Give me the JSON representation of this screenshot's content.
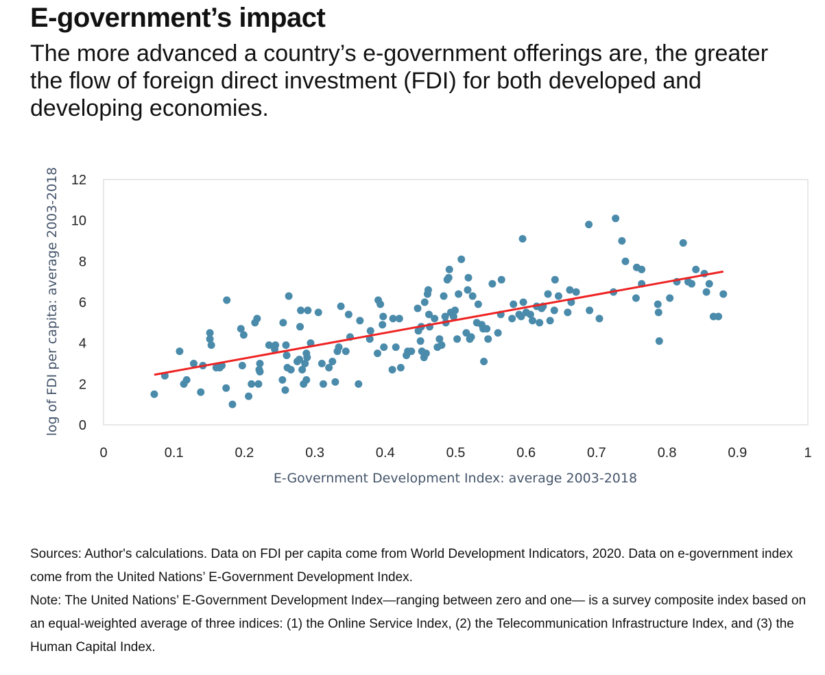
{
  "header": {
    "title": "E-government’s impact",
    "subtitle": "The more advanced a country’s e-government offerings are, the greater the flow of foreign direct investment (FDI) for both developed and developing economies."
  },
  "chart_data": {
    "type": "scatter",
    "xlabel": "E-Government Development Index: average 2003-2018",
    "ylabel": "log of FDI per capita: average 2003-2018",
    "xlim": [
      0,
      1
    ],
    "ylim": [
      0,
      12
    ],
    "x_ticks": [
      "0",
      "0.1",
      "0.2",
      "0.3",
      "0.4",
      "0.5",
      "0.6",
      "0.7",
      "0.8",
      "0.9",
      "1"
    ],
    "y_ticks": [
      "0",
      "2",
      "4",
      "6",
      "8",
      "10",
      "12"
    ],
    "grid": false,
    "point_color": "#4a8aaa",
    "trendline_color": "#ee2222",
    "trendline": {
      "x": [
        0.072,
        0.88
      ],
      "y": [
        2.45,
        7.5
      ]
    },
    "points": [
      [
        0.072,
        1.5
      ],
      [
        0.087,
        2.4
      ],
      [
        0.108,
        3.6
      ],
      [
        0.114,
        2.0
      ],
      [
        0.118,
        2.2
      ],
      [
        0.128,
        3.0
      ],
      [
        0.138,
        1.6
      ],
      [
        0.141,
        2.9
      ],
      [
        0.151,
        4.5
      ],
      [
        0.151,
        4.2
      ],
      [
        0.153,
        3.9
      ],
      [
        0.16,
        2.8
      ],
      [
        0.165,
        2.8
      ],
      [
        0.168,
        2.9
      ],
      [
        0.174,
        1.8
      ],
      [
        0.175,
        6.1
      ],
      [
        0.183,
        1.0
      ],
      [
        0.195,
        4.7
      ],
      [
        0.197,
        2.9
      ],
      [
        0.199,
        4.4
      ],
      [
        0.206,
        1.4
      ],
      [
        0.21,
        2.0
      ],
      [
        0.215,
        5.0
      ],
      [
        0.218,
        5.2
      ],
      [
        0.22,
        2.0
      ],
      [
        0.221,
        2.7
      ],
      [
        0.222,
        2.6
      ],
      [
        0.222,
        3.0
      ],
      [
        0.235,
        3.9
      ],
      [
        0.243,
        3.7
      ],
      [
        0.244,
        3.9
      ],
      [
        0.254,
        2.2
      ],
      [
        0.255,
        5.0
      ],
      [
        0.258,
        1.7
      ],
      [
        0.259,
        3.9
      ],
      [
        0.26,
        3.4
      ],
      [
        0.261,
        2.8
      ],
      [
        0.263,
        6.3
      ],
      [
        0.266,
        2.7
      ],
      [
        0.275,
        3.1
      ],
      [
        0.278,
        3.2
      ],
      [
        0.279,
        4.8
      ],
      [
        0.28,
        5.6
      ],
      [
        0.282,
        2.7
      ],
      [
        0.284,
        2.0
      ],
      [
        0.286,
        3.0
      ],
      [
        0.288,
        3.5
      ],
      [
        0.288,
        2.2
      ],
      [
        0.289,
        3.3
      ],
      [
        0.29,
        5.6
      ],
      [
        0.294,
        4.0
      ],
      [
        0.305,
        5.5
      ],
      [
        0.31,
        3.0
      ],
      [
        0.312,
        2.0
      ],
      [
        0.32,
        2.8
      ],
      [
        0.325,
        3.1
      ],
      [
        0.329,
        2.1
      ],
      [
        0.332,
        3.6
      ],
      [
        0.334,
        3.8
      ],
      [
        0.337,
        5.8
      ],
      [
        0.344,
        3.6
      ],
      [
        0.348,
        5.4
      ],
      [
        0.35,
        4.3
      ],
      [
        0.362,
        2.0
      ],
      [
        0.364,
        5.1
      ],
      [
        0.378,
        4.2
      ],
      [
        0.379,
        4.6
      ],
      [
        0.389,
        3.5
      ],
      [
        0.39,
        6.1
      ],
      [
        0.393,
        5.9
      ],
      [
        0.396,
        4.9
      ],
      [
        0.397,
        5.3
      ],
      [
        0.398,
        3.8
      ],
      [
        0.41,
        2.7
      ],
      [
        0.411,
        5.2
      ],
      [
        0.415,
        3.8
      ],
      [
        0.42,
        5.2
      ],
      [
        0.422,
        2.8
      ],
      [
        0.43,
        3.4
      ],
      [
        0.432,
        3.6
      ],
      [
        0.437,
        3.6
      ],
      [
        0.446,
        5.7
      ],
      [
        0.447,
        4.6
      ],
      [
        0.45,
        4.1
      ],
      [
        0.451,
        4.8
      ],
      [
        0.452,
        3.6
      ],
      [
        0.455,
        3.3
      ],
      [
        0.456,
        6.0
      ],
      [
        0.458,
        3.5
      ],
      [
        0.46,
        6.4
      ],
      [
        0.461,
        6.6
      ],
      [
        0.462,
        5.4
      ],
      [
        0.463,
        4.8
      ],
      [
        0.47,
        5.2
      ],
      [
        0.474,
        3.8
      ],
      [
        0.477,
        4.2
      ],
      [
        0.48,
        3.9
      ],
      [
        0.483,
        6.3
      ],
      [
        0.485,
        5.3
      ],
      [
        0.486,
        5.0
      ],
      [
        0.488,
        7.1
      ],
      [
        0.49,
        7.2
      ],
      [
        0.491,
        7.6
      ],
      [
        0.493,
        5.5
      ],
      [
        0.497,
        5.3
      ],
      [
        0.499,
        5.6
      ],
      [
        0.502,
        4.2
      ],
      [
        0.504,
        6.4
      ],
      [
        0.508,
        8.1
      ],
      [
        0.515,
        4.5
      ],
      [
        0.517,
        6.6
      ],
      [
        0.518,
        7.2
      ],
      [
        0.52,
        4.2
      ],
      [
        0.522,
        4.3
      ],
      [
        0.524,
        6.3
      ],
      [
        0.53,
        5.0
      ],
      [
        0.532,
        5.9
      ],
      [
        0.537,
        4.9
      ],
      [
        0.539,
        4.7
      ],
      [
        0.54,
        3.1
      ],
      [
        0.544,
        4.7
      ],
      [
        0.546,
        4.2
      ],
      [
        0.552,
        6.9
      ],
      [
        0.56,
        4.5
      ],
      [
        0.564,
        5.4
      ],
      [
        0.565,
        7.1
      ],
      [
        0.58,
        5.2
      ],
      [
        0.582,
        5.9
      ],
      [
        0.59,
        5.4
      ],
      [
        0.593,
        5.3
      ],
      [
        0.595,
        9.1
      ],
      [
        0.596,
        6.0
      ],
      [
        0.6,
        5.5
      ],
      [
        0.606,
        5.4
      ],
      [
        0.609,
        5.1
      ],
      [
        0.615,
        5.8
      ],
      [
        0.619,
        5.0
      ],
      [
        0.622,
        5.7
      ],
      [
        0.624,
        5.8
      ],
      [
        0.631,
        6.4
      ],
      [
        0.634,
        5.1
      ],
      [
        0.64,
        5.6
      ],
      [
        0.641,
        7.1
      ],
      [
        0.646,
        6.3
      ],
      [
        0.659,
        5.5
      ],
      [
        0.662,
        6.6
      ],
      [
        0.664,
        6.0
      ],
      [
        0.671,
        6.5
      ],
      [
        0.689,
        9.8
      ],
      [
        0.69,
        5.6
      ],
      [
        0.704,
        5.2
      ],
      [
        0.724,
        6.5
      ],
      [
        0.727,
        10.1
      ],
      [
        0.736,
        9.0
      ],
      [
        0.741,
        8.0
      ],
      [
        0.756,
        6.2
      ],
      [
        0.757,
        7.7
      ],
      [
        0.764,
        7.6
      ],
      [
        0.764,
        6.9
      ],
      [
        0.787,
        5.9
      ],
      [
        0.788,
        5.5
      ],
      [
        0.789,
        4.1
      ],
      [
        0.804,
        6.2
      ],
      [
        0.814,
        7.0
      ],
      [
        0.823,
        8.9
      ],
      [
        0.83,
        7.0
      ],
      [
        0.835,
        6.9
      ],
      [
        0.841,
        7.6
      ],
      [
        0.853,
        7.4
      ],
      [
        0.856,
        6.5
      ],
      [
        0.86,
        6.9
      ],
      [
        0.866,
        5.3
      ],
      [
        0.873,
        5.3
      ],
      [
        0.88,
        6.4
      ]
    ]
  },
  "footer": {
    "sources": "Sources: Author's calculations. Data on FDI per capita come from World Development Indicators, 2020. Data on e-government index come from the United Nations’ E-Government Development Index.",
    "note": "Note: The United Nations’ E-Government Development Index—ranging between zero and one— is a survey composite index based on an equal-weighted average of three indices: (1) the Online Service Index, (2) the Telecommunication Infrastructure Index, and (3) the Human Capital Index."
  }
}
